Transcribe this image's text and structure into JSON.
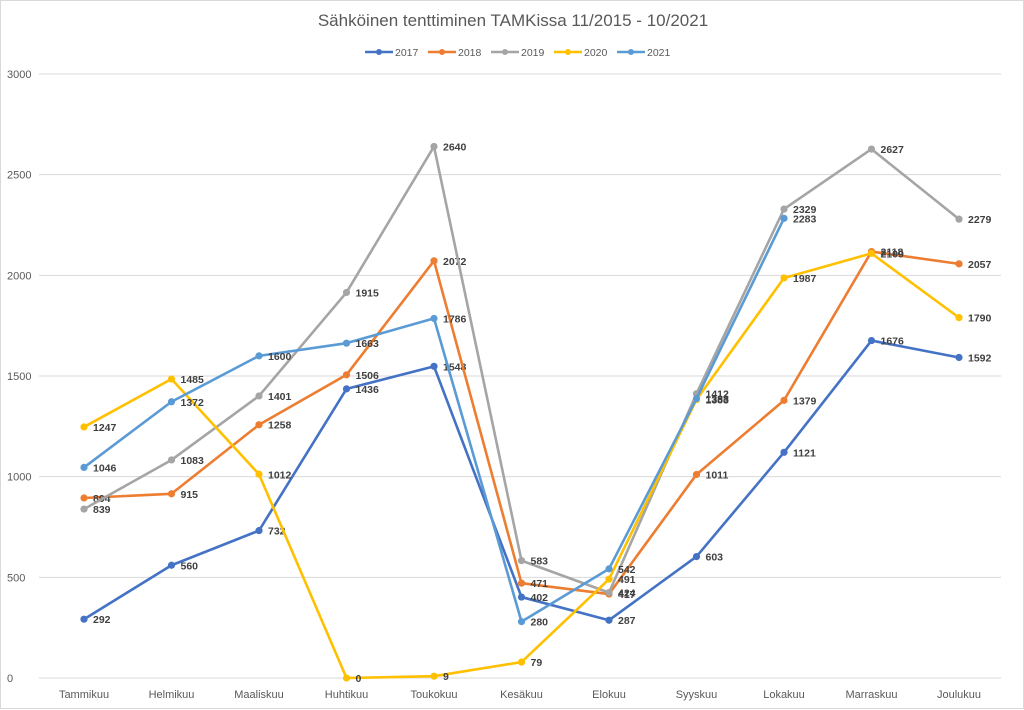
{
  "chart_data": {
    "type": "line",
    "title": "Sähköinen tenttiminen TAMKissa 11/2015 - 10/2021",
    "xlabel": "",
    "ylabel": "",
    "ylim": [
      0,
      3000
    ],
    "yticks": [
      0,
      500,
      1000,
      1500,
      2000,
      2500,
      3000
    ],
    "grid": true,
    "legend_position": "top",
    "categories": [
      "Tammikuu",
      "Helmikuu",
      "Maaliskuu",
      "Huhtikuu",
      "Toukokuu",
      "Kesäkuu",
      "Elokuu",
      "Syyskuu",
      "Lokakuu",
      "Marraskuu",
      "Joulukuu"
    ],
    "series": [
      {
        "name": "2017",
        "color": "#4472c4",
        "values": [
          292,
          560,
          732,
          1436,
          1548,
          402,
          287,
          603,
          1121,
          1676,
          1592
        ]
      },
      {
        "name": "2018",
        "color": "#ed7d31",
        "values": [
          894,
          915,
          1258,
          1506,
          2072,
          471,
          417,
          1011,
          1379,
          2118,
          2057
        ]
      },
      {
        "name": "2019",
        "color": "#a5a5a5",
        "values": [
          839,
          1083,
          1401,
          1915,
          2640,
          583,
          424,
          1412,
          2329,
          2627,
          2279
        ]
      },
      {
        "name": "2020",
        "color": "#ffc000",
        "values": [
          1247,
          1485,
          1012,
          0,
          9,
          79,
          491,
          1383,
          1987,
          2109,
          1790
        ]
      },
      {
        "name": "2021",
        "color": "#5b9bd5",
        "values": [
          1046,
          1372,
          1600,
          1663,
          1786,
          280,
          542,
          1388,
          2283,
          null,
          null
        ]
      }
    ]
  }
}
